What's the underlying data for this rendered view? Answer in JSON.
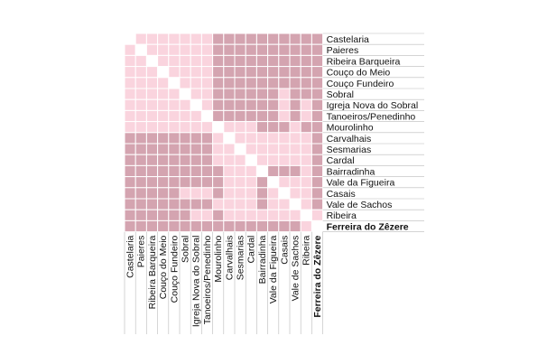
{
  "chart_data": {
    "type": "heatmap",
    "title": "",
    "labels": [
      "Castelaria",
      "Paieres",
      "Ribeira Barqueira",
      "Couço do Meio",
      "Couço Fundeiro",
      "Sobral",
      "Igreja Nova do Sobral",
      "Tanoeiros/Penedinho",
      "Mourolinho",
      "Carvalhais",
      "Sesmarias",
      "Cardal",
      "Bairradinha",
      "Vale da Figueira",
      "Casais",
      "Vale de Sachos",
      "Ribeira",
      "Ferreira do Zêzere"
    ],
    "bold_labels": [
      "Ferreira do Zêzere"
    ],
    "levels": [
      "diagonal",
      "light",
      "dark"
    ],
    "colors": {
      "diagonal": "#ffffff",
      "light": "#fad4de",
      "dark": "#d4a4b0",
      "grid": "#ffffff",
      "rule": "#bbbbbb"
    },
    "matrix": [
      [
        0,
        1,
        1,
        1,
        1,
        1,
        1,
        1,
        2,
        2,
        2,
        2,
        2,
        2,
        2,
        2,
        2,
        2
      ],
      [
        1,
        0,
        1,
        1,
        1,
        1,
        1,
        1,
        2,
        2,
        2,
        2,
        2,
        2,
        2,
        2,
        2,
        2
      ],
      [
        1,
        1,
        0,
        1,
        1,
        1,
        1,
        1,
        2,
        2,
        2,
        2,
        2,
        2,
        2,
        2,
        2,
        2
      ],
      [
        1,
        1,
        1,
        0,
        1,
        1,
        1,
        1,
        2,
        2,
        2,
        2,
        2,
        2,
        2,
        2,
        2,
        2
      ],
      [
        1,
        1,
        1,
        1,
        0,
        1,
        1,
        1,
        2,
        2,
        2,
        2,
        2,
        2,
        2,
        2,
        2,
        2
      ],
      [
        1,
        1,
        1,
        1,
        1,
        0,
        1,
        1,
        2,
        2,
        2,
        2,
        2,
        2,
        1,
        2,
        2,
        2
      ],
      [
        1,
        1,
        1,
        1,
        1,
        1,
        0,
        1,
        2,
        2,
        2,
        2,
        2,
        2,
        1,
        2,
        1,
        2
      ],
      [
        1,
        1,
        1,
        1,
        1,
        1,
        1,
        0,
        2,
        2,
        2,
        2,
        2,
        2,
        1,
        2,
        1,
        2
      ],
      [
        1,
        1,
        1,
        1,
        1,
        1,
        1,
        1,
        0,
        1,
        1,
        1,
        2,
        2,
        2,
        1,
        2,
        2
      ],
      [
        2,
        2,
        2,
        2,
        2,
        2,
        2,
        2,
        1,
        0,
        1,
        1,
        1,
        1,
        1,
        1,
        1,
        2
      ],
      [
        2,
        2,
        2,
        2,
        2,
        2,
        2,
        2,
        1,
        1,
        0,
        1,
        1,
        1,
        1,
        1,
        1,
        2
      ],
      [
        2,
        2,
        2,
        2,
        2,
        2,
        2,
        2,
        1,
        1,
        1,
        0,
        1,
        1,
        1,
        1,
        1,
        2
      ],
      [
        2,
        2,
        2,
        2,
        2,
        2,
        2,
        2,
        2,
        1,
        1,
        1,
        0,
        2,
        2,
        2,
        1,
        2
      ],
      [
        2,
        2,
        2,
        2,
        2,
        2,
        2,
        2,
        2,
        1,
        1,
        1,
        2,
        0,
        1,
        1,
        1,
        2
      ],
      [
        2,
        2,
        2,
        2,
        2,
        1,
        1,
        1,
        2,
        1,
        1,
        1,
        2,
        1,
        0,
        1,
        1,
        2
      ],
      [
        2,
        2,
        2,
        2,
        2,
        2,
        2,
        2,
        1,
        1,
        1,
        1,
        2,
        1,
        1,
        0,
        1,
        2
      ],
      [
        2,
        2,
        2,
        2,
        2,
        2,
        1,
        1,
        2,
        1,
        1,
        1,
        1,
        1,
        1,
        1,
        0,
        1
      ],
      [
        2,
        2,
        2,
        2,
        2,
        2,
        2,
        2,
        2,
        2,
        2,
        2,
        2,
        2,
        2,
        2,
        1,
        0
      ]
    ]
  }
}
